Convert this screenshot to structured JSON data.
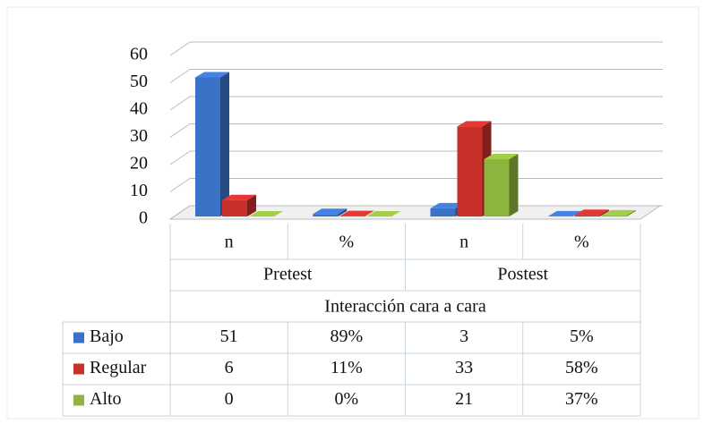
{
  "chart_data": {
    "type": "bar3d",
    "categories": [
      "n",
      "%",
      "n",
      "%"
    ],
    "groups": [
      "Pretest",
      "Postest"
    ],
    "x_label": "Interacción cara a cara",
    "ylim": [
      0,
      60
    ],
    "yticks": [
      0,
      10,
      20,
      30,
      40,
      50,
      60
    ],
    "grid": true,
    "series": [
      {
        "name": "Bajo",
        "color": "#3a72c8",
        "values": [
          51,
          0.89,
          3,
          0.05
        ],
        "value_labels": [
          "51",
          "89%",
          "3",
          "5%"
        ]
      },
      {
        "name": "Regular",
        "color": "#c8302c",
        "values": [
          6,
          0.11,
          33,
          0.58
        ],
        "value_labels": [
          "6",
          "11%",
          "33",
          "58%"
        ]
      },
      {
        "name": "Alto",
        "color": "#8db43c",
        "values": [
          0,
          0,
          21,
          0.37
        ],
        "value_labels": [
          "0",
          "0%",
          "21",
          "37%"
        ]
      }
    ]
  }
}
